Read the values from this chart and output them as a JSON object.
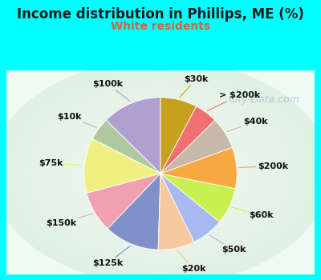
{
  "title": "Income distribution in Phillips, ME (%)",
  "subtitle": "White residents",
  "title_color": "#1a1a1a",
  "subtitle_color": "#cc6644",
  "background_color": "#00ffff",
  "inner_bg_color": "#e8f5ee",
  "labels": [
    "$100k",
    "$10k",
    "$75k",
    "$150k",
    "$125k",
    "$20k",
    "$50k",
    "$60k",
    "$200k",
    "$40k",
    "> $200k",
    "$30k"
  ],
  "values": [
    13,
    5,
    12,
    9,
    12,
    8,
    7,
    8,
    9,
    7,
    5,
    8
  ],
  "colors": [
    "#b0a0d0",
    "#b0c8a0",
    "#f0f080",
    "#f0a0b0",
    "#8090c8",
    "#f8c8a0",
    "#a8b8f0",
    "#c8f050",
    "#f8a840",
    "#c8b8a8",
    "#f07070",
    "#c8a020"
  ],
  "label_color": "#111111",
  "label_fontsize": 8,
  "title_fontsize": 12,
  "subtitle_fontsize": 10,
  "startangle": 90,
  "labeldistance": 1.28,
  "watermark": "City-Data.com",
  "watermark_color": "#aabbcc",
  "watermark_fontsize": 9
}
